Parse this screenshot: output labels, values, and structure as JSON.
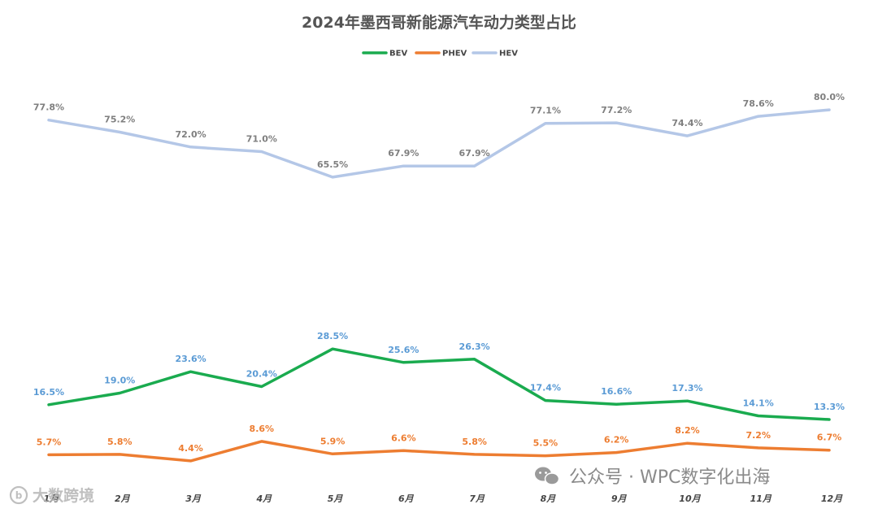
{
  "chart_data": {
    "type": "line",
    "title": "2024年墨西哥新能源汽车动力类型占比",
    "categories": [
      "1月",
      "2月",
      "3月",
      "4月",
      "5月",
      "6月",
      "7月",
      "8月",
      "9月",
      "10月",
      "11月",
      "12月"
    ],
    "series": [
      {
        "name": "BEV",
        "color": "#1aab4f",
        "label_color": "#5b9bd5",
        "values": [
          16.5,
          19.0,
          23.6,
          20.4,
          28.5,
          25.6,
          26.3,
          17.4,
          16.6,
          17.3,
          14.1,
          13.3
        ],
        "labels": [
          "16.5%",
          "19.0%",
          "23.6%",
          "20.4%",
          "28.5%",
          "25.6%",
          "26.3%",
          "17.4%",
          "16.6%",
          "17.3%",
          "14.1%",
          "13.3%"
        ]
      },
      {
        "name": "PHEV",
        "color": "#ed7d31",
        "label_color": "#ed7d31",
        "values": [
          5.7,
          5.8,
          4.4,
          8.6,
          5.9,
          6.6,
          5.8,
          5.5,
          6.2,
          8.2,
          7.2,
          6.7
        ],
        "labels": [
          "5.7%",
          "5.8%",
          "4.4%",
          "8.6%",
          "5.9%",
          "6.6%",
          "5.8%",
          "5.5%",
          "6.2%",
          "8.2%",
          "7.2%",
          "6.7%"
        ]
      },
      {
        "name": "HEV",
        "color": "#b4c7e7",
        "label_color": "#7f7f7f",
        "values": [
          77.8,
          75.2,
          72.0,
          71.0,
          65.5,
          67.9,
          67.9,
          77.1,
          77.2,
          74.4,
          78.6,
          80.0
        ],
        "labels": [
          "77.8%",
          "75.2%",
          "72.0%",
          "71.0%",
          "65.5%",
          "67.9%",
          "67.9%",
          "77.1%",
          "77.2%",
          "74.4%",
          "78.6%",
          "80.0%"
        ]
      }
    ],
    "ylim": [
      0,
      90
    ],
    "grid": false,
    "legend": "top-center"
  },
  "watermark": {
    "right_text": "公众号 · WPC数字化出海",
    "left_text": "大数跨境",
    "icons": [
      "wechat-icon",
      "brand-logo-icon"
    ]
  }
}
